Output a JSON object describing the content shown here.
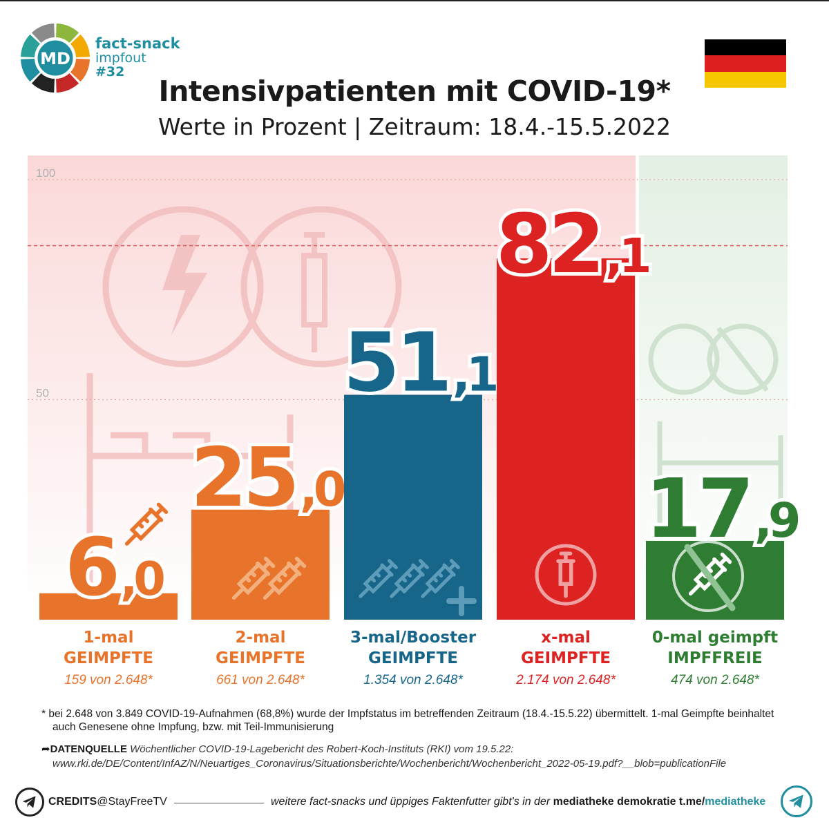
{
  "header": {
    "logo_text": "MD",
    "brand_line1": "fact-snack",
    "brand_line2": "impfout",
    "brand_line3": "#32",
    "title": "Intensivpatienten mit COVID-19*",
    "subtitle": "Werte in Prozent | Zeitraum: 18.4.-15.5.2022",
    "flag_colors": [
      "#000000",
      "#dd1f1f",
      "#f6c700"
    ],
    "logo_colors": [
      "#8cb63c",
      "#f2a900",
      "#e8732a",
      "#c62828",
      "#222222",
      "#1f8fa0",
      "#2aa198",
      "#8a8a8a"
    ]
  },
  "chart_data": {
    "type": "bar",
    "title": "Intensivpatienten mit COVID-19*",
    "subtitle": "Werte in Prozent | Zeitraum: 18.4.-15.5.2022",
    "ylim": [
      0,
      100
    ],
    "yticks": [
      "100",
      "50"
    ],
    "reference_line": 85,
    "bars": [
      {
        "label_line1": "1-mal",
        "label_line2": "GEIMPFTE",
        "count": "159 von 2.648*",
        "value": 6.0,
        "int": "6",
        "dec": ",0",
        "color": "#e8732a",
        "shade": "#f3b07f",
        "icon": "syringe-icon",
        "icon_count": 1
      },
      {
        "label_line1": "2-mal",
        "label_line2": "GEIMPFTE",
        "count": "661 von 2.648*",
        "value": 25.0,
        "int": "25",
        "dec": ",0",
        "color": "#e8732a",
        "shade": "#f3b07f",
        "icon": "syringe-icon",
        "icon_count": 2
      },
      {
        "label_line1": "3-mal/Booster",
        "label_line2": "GEIMPFTE",
        "count": "1.354 von 2.648*",
        "value": 51.1,
        "int": "51",
        "dec": ",1",
        "color": "#17668a",
        "shade": "#5d9cb8",
        "icon": "syringe-icon",
        "icon_count": 3
      },
      {
        "label_line1": "x-mal",
        "label_line2": "GEIMPFTE",
        "count": "2.174 von 2.648*",
        "value": 82.1,
        "int": "82",
        "dec": ",1",
        "color": "#dd2222",
        "shade": "#f0a0a0",
        "icon": "syringe-circle-icon",
        "icon_count": 1
      },
      {
        "label_line1": "0-mal geimpft",
        "label_line2": "IMPFFREIE",
        "count": "474 von 2.648*",
        "value": 17.9,
        "int": "17",
        "dec": ",9",
        "color": "#2e7d32",
        "shade": "#8fc394",
        "icon": "no-syringe-icon",
        "icon_count": 1
      }
    ]
  },
  "footer": {
    "footnote_line1": "* bei 2.648 von 3.849 COVID-19-Aufnahmen (68,8%) wurde der Impfstatus im betreffenden Zeitraum (18.4.-15.5.22) übermittelt. 1-mal Geimpfte beinhaltet",
    "footnote_line2": "auch Genesene ohne Impfung, bzw. mit Teil-Immunisierung",
    "source_label": "DATENQUELLE",
    "source_text": "Wöchentlicher COVID-19-Lagebericht des Robert-Koch-Instituts (RKI) vom 19.5.22:",
    "source_url": "www.rki.de/DE/Content/InfAZ/N/Neuartiges_Coronavirus/Situationsberichte/Wochenbericht/Wochenbericht_2022-05-19.pdf?__blob=publicationFile",
    "credits_label": "CREDITS",
    "credits_handle": "@StayFreeTV",
    "more_text": "weitere fact-snacks und üppiges Faktenfutter gibt's in der ",
    "more_bold": "mediatheke demokratie",
    "more_link_prefix": " t.me/",
    "more_link_channel": "mediatheke"
  }
}
